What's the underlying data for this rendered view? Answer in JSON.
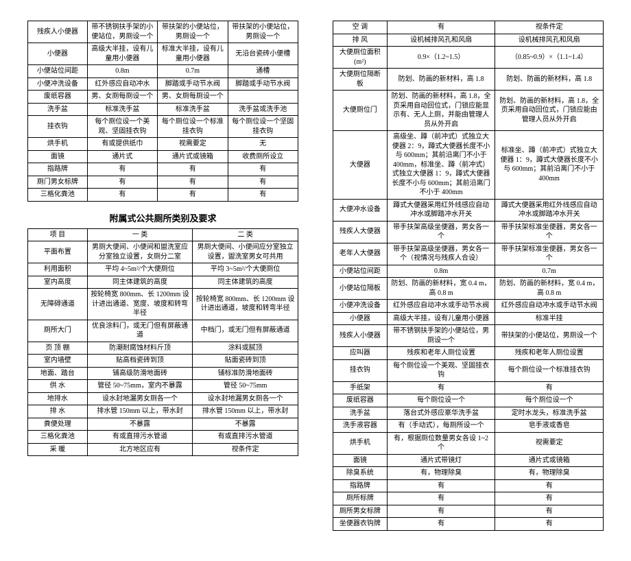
{
  "table1": {
    "rows": [
      [
        "残疾人小便器",
        "带不锈钢扶手架的小便站位，男厕设一个",
        "带扶架的小便站位，男厕设一个",
        "带扶架的小便站位，男厕设一个"
      ],
      [
        "小便器",
        "高级大半挂，设有儿童用小便器",
        "标准大半挂，设有儿童用小便器",
        "无沿台瓷砖小便槽"
      ],
      [
        "小便站位间距",
        "0.8m",
        "0.7m",
        "通槽"
      ],
      [
        "小便冲洗设备",
        "红外感应自动冲水",
        "脚踏或手动节水阀",
        "脚踏或手动节水阀"
      ],
      [
        "废纸容器",
        "男、女厕每厕设一个",
        "男、女厕每厕设一个",
        ""
      ],
      [
        "洗手盆",
        "标准洗手盆",
        "标准洗手盆",
        "洗手盆或洗手池"
      ],
      [
        "挂衣钩",
        "每个厕位设一个美观、坚固挂衣钩",
        "每个厕位设一个标准挂衣钩",
        "每个厕位设一个坚固挂衣钩"
      ],
      [
        "烘手机",
        "有或提供纸巾",
        "视需要定",
        "无"
      ],
      [
        "面镜",
        "通片式",
        "通片式或镜箱",
        "收费厕所设立"
      ],
      [
        "指路牌",
        "有",
        "有",
        "有"
      ],
      [
        "厕门男女标牌",
        "有",
        "有",
        "有"
      ],
      [
        "三格化粪池",
        "有",
        "有",
        "有"
      ]
    ]
  },
  "title2": "附属式公共厕所类别及要求",
  "table2": {
    "header": [
      "项 目",
      "一 类",
      "二 类"
    ],
    "rows": [
      [
        "平面布置",
        "男厕大便间、小便间和盥洗室应分室独立设置，女厕分二室",
        "男厕大便间、小便间应分室独立设置，盥洗室男女可共用"
      ],
      [
        "利用面积",
        "平均 4~5m²/个大便厕位",
        "平均 3~5m²/个大便厕位"
      ],
      [
        "室内高度",
        "同主体建筑的高度",
        "同主体建筑的高度"
      ],
      [
        "无障碍通道",
        "按轮椅宽 800mm、长 1200mm 设计进出通道、宽度、坡度和转弯半径",
        "按轮椅宽 800mm、长 1200mm 设计进出通道，坡度和转弯半径"
      ],
      [
        "厕所大门",
        "优良涂料门，或无门但有屏蔽通道",
        "中档门，或无门但有屏蔽通道"
      ],
      [
        "页 顶 棚",
        "防潮耐腐蚀材料斤顶",
        "涂料或腻顶"
      ],
      [
        "室内墙壁",
        "贴高档瓷砖到顶",
        "贴面瓷砖到顶"
      ],
      [
        "地面、踏台",
        "铺高级防滑地面砖",
        "铺标准防滑地面砖"
      ],
      [
        "供 水",
        "管径 50~75mm，室内不暴露",
        "管径 50~75mm"
      ],
      [
        "地排水",
        "设水封地漏男女厕各一个",
        "设水封地漏男女厕各一个"
      ],
      [
        "排 水",
        "排水管 150mm 以上，带水封",
        "排水管 150mm 以上，带水封"
      ],
      [
        "粪便处理",
        "不暴露",
        "不暴露"
      ],
      [
        "三格化粪池",
        "有或直排污水管道",
        "有或直排污水管道"
      ],
      [
        "采 暖",
        "北方地区应有",
        "视条件定"
      ]
    ]
  },
  "table3": {
    "rows": [
      [
        "空 调",
        "有",
        "视条件定"
      ],
      [
        "排 风",
        "设机械排风孔和风扇",
        "设机械排风孔和风扇"
      ],
      [
        "大便厕位面积 (m²)",
        "0.9×（1.2~1.5）",
        "（0.85~0.9）×（1.1~1.4）"
      ],
      [
        "大便厕位隔断板",
        "防划、防画的新材料，高 1.8",
        "防划、防画的新材料，高 1.8"
      ],
      [
        "大便厕位门",
        "防划、防画的新材料，高 1.8，全页采用自动回位式，门锁应能显示有、无人上厕，并能由管理人员从外开启",
        "防划、防画的新材料，高 1.8，全页采用自动回位式，门锁应能由管理人员从外开启"
      ],
      [
        "大便器",
        "高级坐、蹲（前冲式）式独立大便器 2：9，蹲式大便器长度不小与 600mm；其前沿离门不小于 400mm，标准坐、蹲（前冲式）式独立大便器 1：9，蹲式大便器长度不小与 600mm；其前沿离门不小于 400mm",
        "标准坐、蹲（前冲式）式独立大便器 1：9，蹲式大便器长度不小与 600mm；其前沿离门不小于 400mm"
      ],
      [
        "大便冲水设备",
        "蹲式大便器采用红外线感应自动冲水或脚踏冲水开关",
        "蹲式大便器采用红外线感应自动冲水或脚踏冲水开关"
      ],
      [
        "残疾人大便器",
        "带手扶架高级坐便器，男女各一个",
        "带手扶架标准坐便器，男女各一个"
      ],
      [
        "老年人大便器",
        "带手扶架高级坐便器，男女各一个（视情况与残疾人合设）",
        "带手扶架标准坐便器，男女各一个"
      ],
      [
        "小便站位间距",
        "0.8m",
        "0.7m"
      ],
      [
        "小便站位隔板",
        "防划、防画的新材料，宽 0.4 m，高 0.8 m",
        "防划、防画的新材料，宽 0.4 m，高 0.8 m"
      ],
      [
        "小便冲洗设备",
        "红外感应自动冲水或手动节水阀",
        "红外感应自动冲水或手动节水阀"
      ],
      [
        "小便器",
        "高级大半挂，设有儿童用小便器",
        "标准半挂"
      ],
      [
        "残疾人小便器",
        "带不锈钢扶手架的小便站位，男厕设一个",
        "带扶架的小便站位，男厕设一个"
      ],
      [
        "应叫器",
        "残疾和老年人厕位设置",
        "残疾和老年人厕位设置"
      ],
      [
        "挂衣钩",
        "每个厕位设一个美观、坚固挂衣钩",
        "每个厕位设一个标准挂衣钩"
      ],
      [
        "手纸架",
        "有",
        "有"
      ],
      [
        "废纸容器",
        "每个厕位设一个",
        "每个厕位设一个"
      ],
      [
        "洗手盆",
        "落台式外感应豪华洗手盆",
        "定时水龙头，标准洗手盆"
      ],
      [
        "洗手液容器",
        "有（手动式），每厕所设一个",
        "皂手液或香皂"
      ],
      [
        "烘手机",
        "有，根据厕位数量男女各设 1~2 个",
        "视需要定"
      ],
      [
        "面镜",
        "通片式带镜灯",
        "通片式或镜箱"
      ],
      [
        "除臭系统",
        "有，物理除臭",
        "有，物理除臭"
      ],
      [
        "指路牌",
        "有",
        "有"
      ],
      [
        "厕所标牌",
        "有",
        "有"
      ],
      [
        "厕所男女标牌",
        "有",
        "有"
      ],
      [
        "坐便器衣钩牌",
        "有",
        "有"
      ]
    ]
  }
}
